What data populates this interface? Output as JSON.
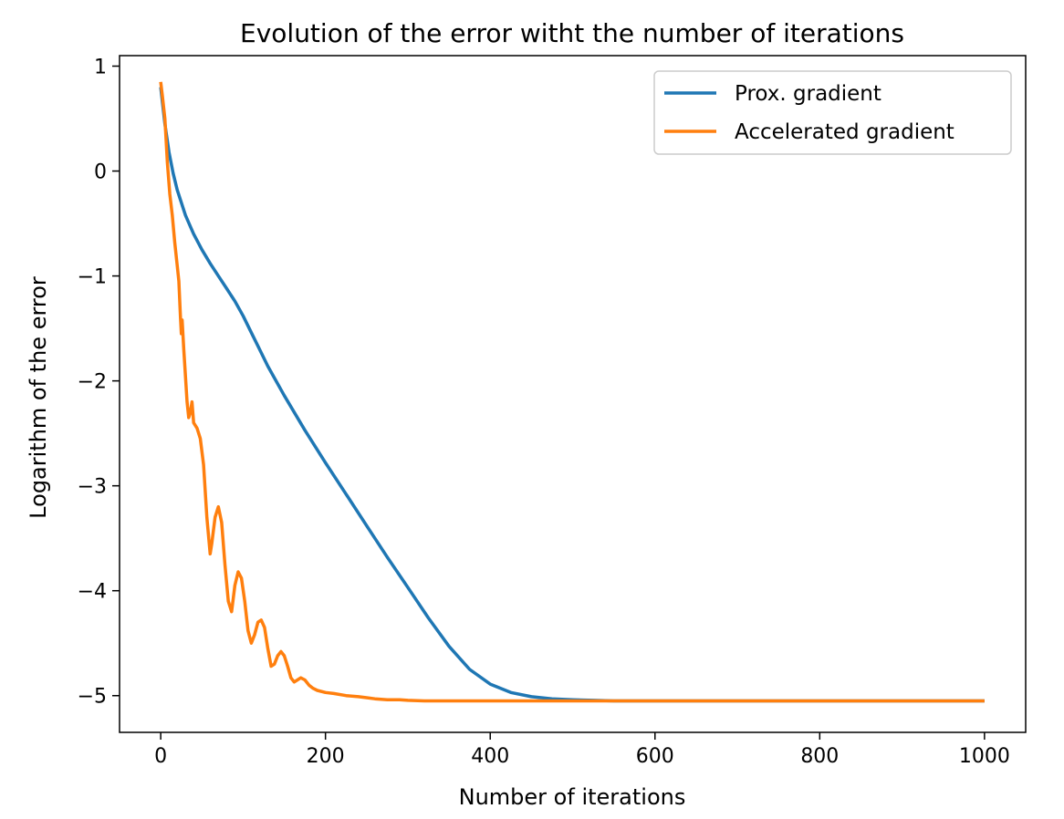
{
  "chart_data": {
    "type": "line",
    "title": "Evolution of the error witht the number of iterations",
    "xlabel": "Number of iterations",
    "ylabel": "Logarithm of the error",
    "xlim": [
      -50,
      1050
    ],
    "ylim": [
      -5.35,
      1.1
    ],
    "xticks": [
      0,
      200,
      400,
      600,
      800,
      1000
    ],
    "xtick_labels": [
      "0",
      "200",
      "400",
      "600",
      "800",
      "1000"
    ],
    "yticks": [
      1,
      0,
      -1,
      -2,
      -3,
      -4,
      -5
    ],
    "ytick_labels": [
      "1",
      "0",
      "−1",
      "−2",
      "−3",
      "−4",
      "−5"
    ],
    "grid": false,
    "legend_position": "top-right",
    "series": [
      {
        "name": "Prox. gradient",
        "color": "#1f77b4",
        "x": [
          0,
          5,
          10,
          15,
          20,
          30,
          40,
          50,
          60,
          70,
          80,
          90,
          100,
          110,
          120,
          130,
          140,
          150,
          175,
          200,
          225,
          250,
          275,
          300,
          325,
          350,
          375,
          400,
          425,
          450,
          475,
          500,
          525,
          550,
          575,
          600,
          650,
          700,
          800,
          900,
          1000
        ],
        "y": [
          0.8,
          0.45,
          0.18,
          -0.02,
          -0.18,
          -0.42,
          -0.6,
          -0.75,
          -0.88,
          -1.0,
          -1.12,
          -1.24,
          -1.38,
          -1.54,
          -1.7,
          -1.86,
          -2.0,
          -2.14,
          -2.47,
          -2.78,
          -3.08,
          -3.38,
          -3.68,
          -3.97,
          -4.26,
          -4.53,
          -4.75,
          -4.89,
          -4.97,
          -5.01,
          -5.03,
          -5.04,
          -5.045,
          -5.05,
          -5.05,
          -5.05,
          -5.05,
          -5.05,
          -5.05,
          -5.05,
          -5.05
        ]
      },
      {
        "name": "Accelerated gradient",
        "color": "#ff7f0e",
        "x": [
          0,
          2,
          5,
          8,
          11,
          14,
          17,
          20,
          22,
          24,
          25,
          26,
          28,
          30,
          32,
          34,
          36,
          38,
          40,
          44,
          48,
          52,
          56,
          60,
          62,
          66,
          70,
          74,
          78,
          82,
          86,
          90,
          94,
          98,
          102,
          106,
          110,
          114,
          118,
          122,
          126,
          130,
          134,
          138,
          142,
          146,
          150,
          154,
          158,
          162,
          166,
          170,
          175,
          180,
          185,
          190,
          200,
          210,
          225,
          240,
          250,
          260,
          275,
          290,
          300,
          320,
          350,
          400,
          500,
          600,
          700,
          800,
          900,
          1000
        ],
        "y": [
          0.85,
          0.72,
          0.5,
          0.08,
          -0.22,
          -0.42,
          -0.68,
          -0.9,
          -1.05,
          -1.4,
          -1.55,
          -1.42,
          -1.7,
          -1.95,
          -2.2,
          -2.35,
          -2.3,
          -2.2,
          -2.4,
          -2.45,
          -2.55,
          -2.8,
          -3.3,
          -3.65,
          -3.55,
          -3.3,
          -3.2,
          -3.35,
          -3.75,
          -4.1,
          -4.2,
          -3.95,
          -3.82,
          -3.88,
          -4.1,
          -4.38,
          -4.5,
          -4.42,
          -4.3,
          -4.28,
          -4.35,
          -4.55,
          -4.72,
          -4.7,
          -4.62,
          -4.58,
          -4.62,
          -4.72,
          -4.83,
          -4.87,
          -4.85,
          -4.83,
          -4.85,
          -4.9,
          -4.93,
          -4.95,
          -4.97,
          -4.98,
          -5.0,
          -5.01,
          -5.02,
          -5.03,
          -5.04,
          -5.04,
          -5.045,
          -5.05,
          -5.05,
          -5.05,
          -5.05,
          -5.05,
          -5.05,
          -5.05,
          -5.05,
          -5.05
        ]
      }
    ]
  }
}
